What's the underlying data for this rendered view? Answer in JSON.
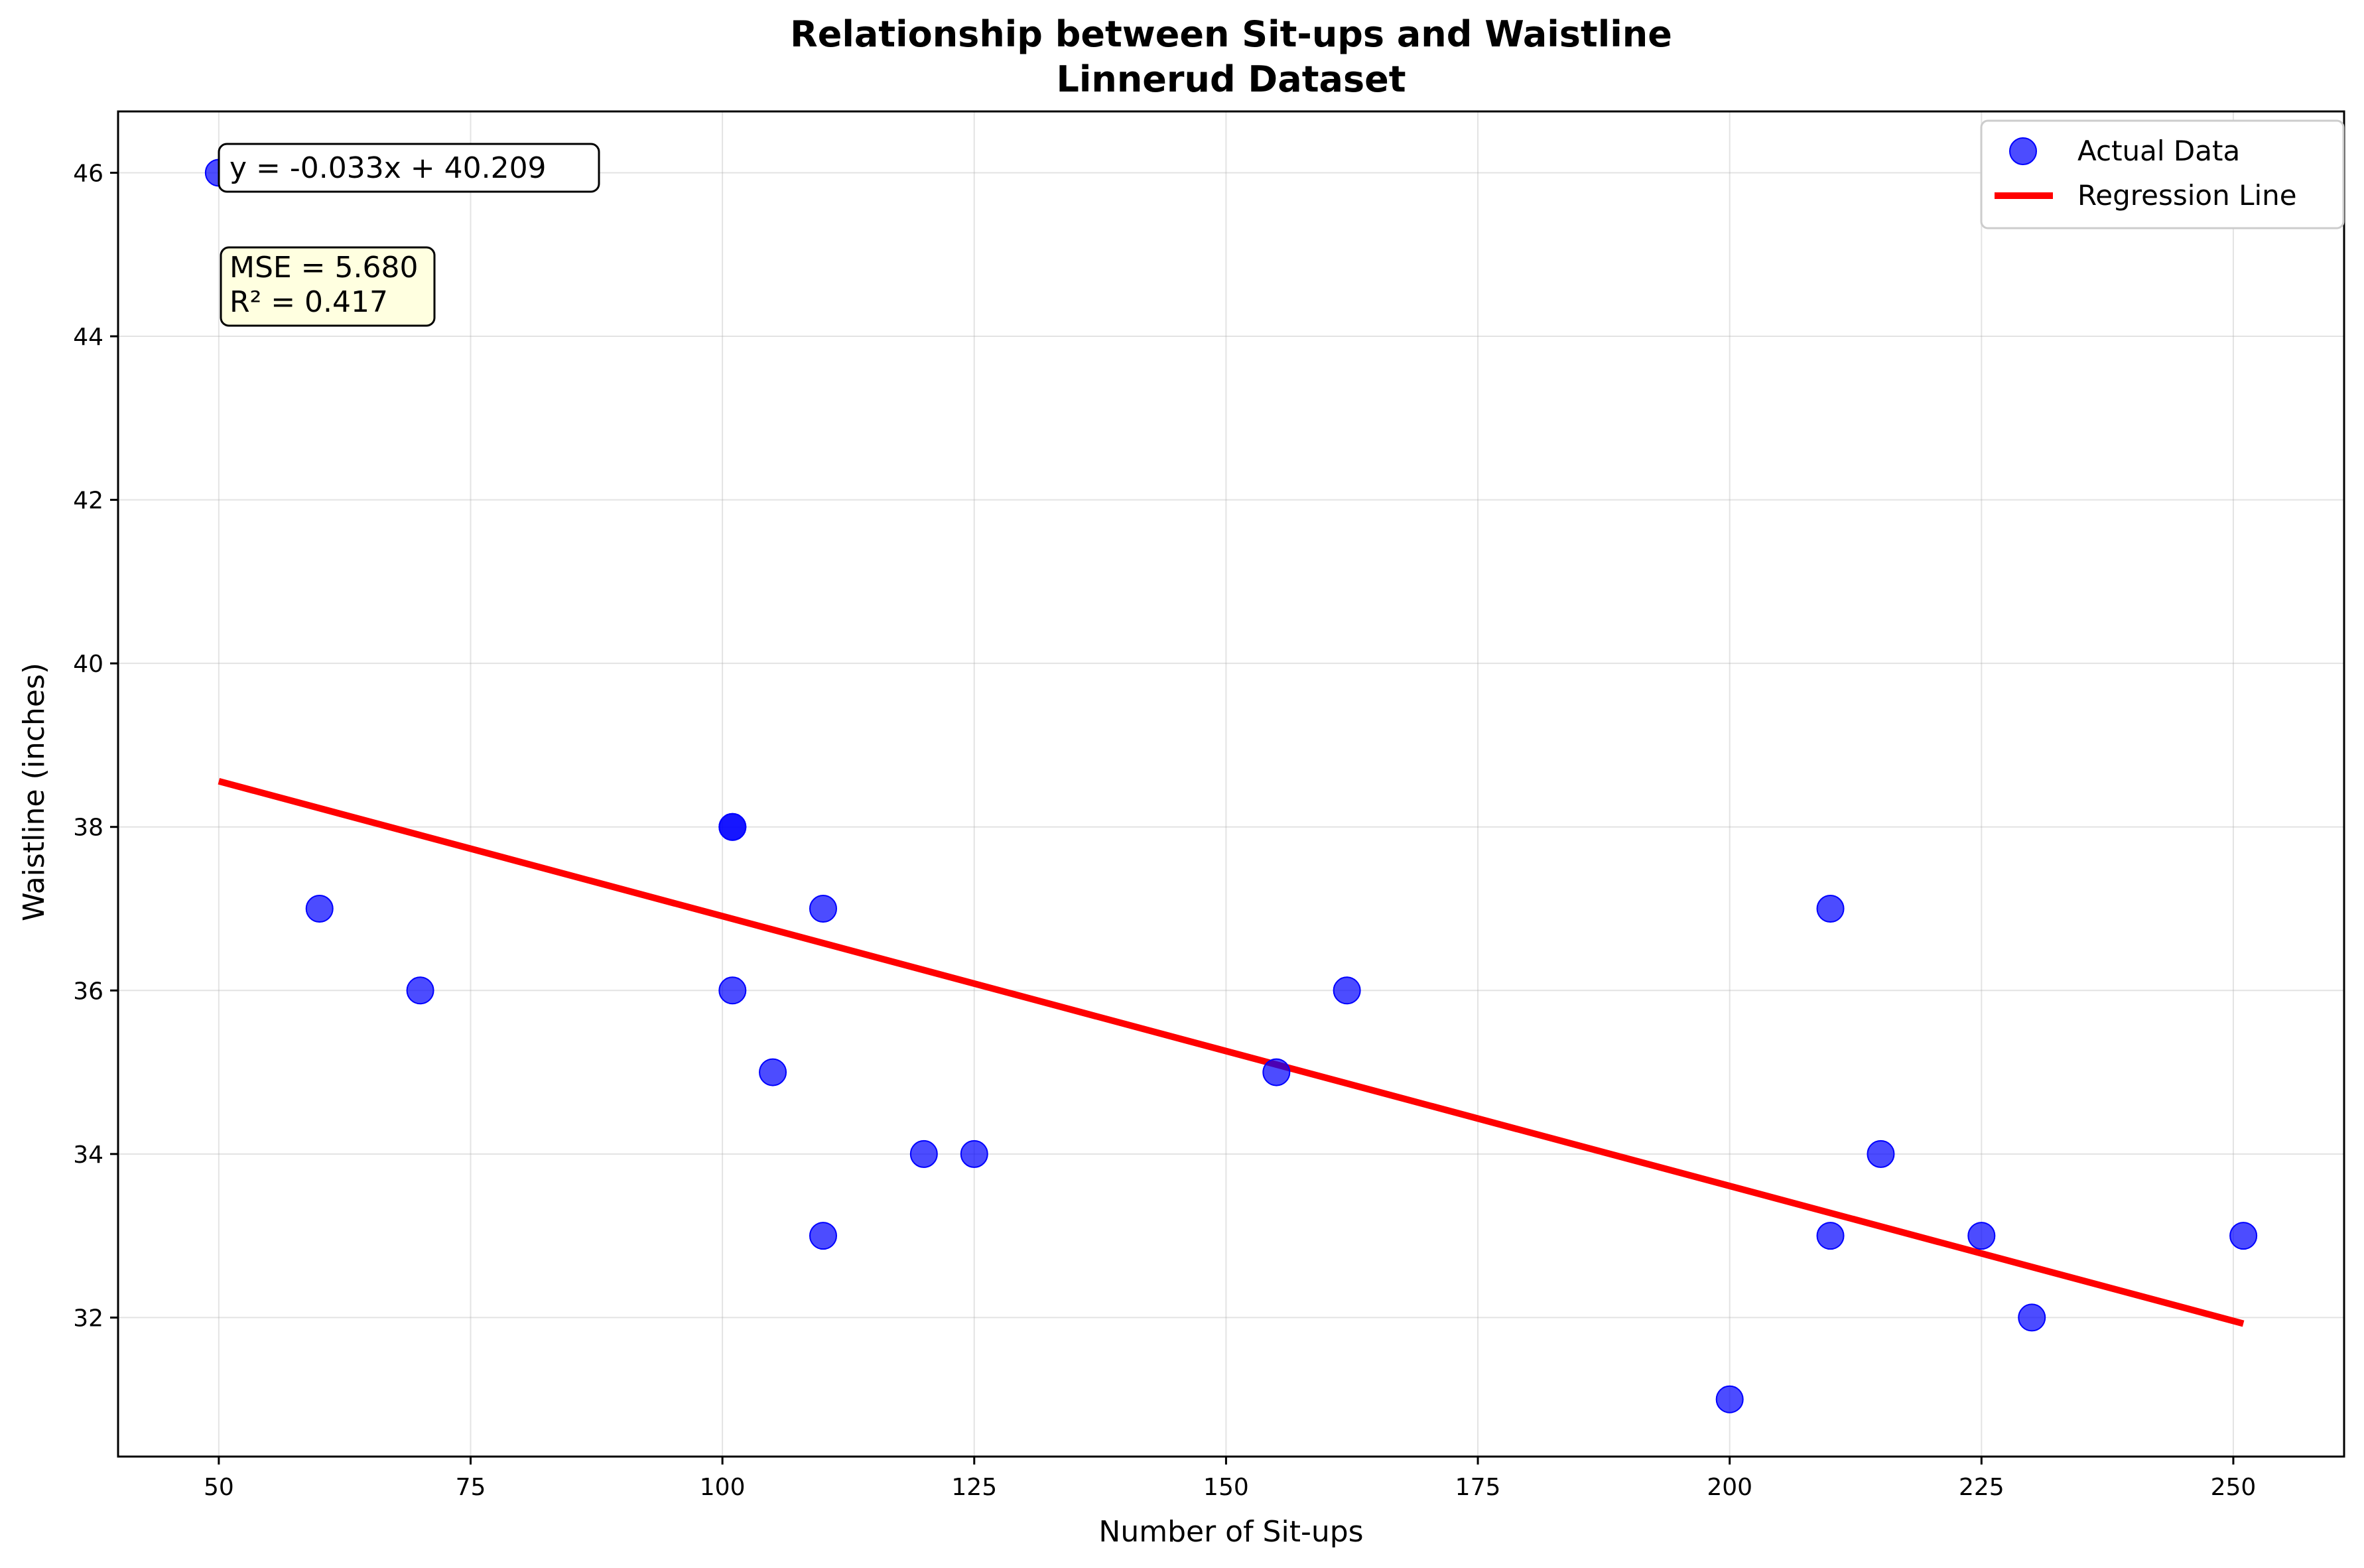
{
  "chart_data": {
    "type": "scatter",
    "title": "Relationship between Sit-ups and Waistline",
    "subtitle": "Linnerud Dataset",
    "xlabel": "Number of Sit-ups",
    "ylabel": "Waistline (inches)",
    "xlim": [
      40,
      261
    ],
    "ylim": [
      30.3,
      46.75
    ],
    "xticks": [
      50,
      75,
      100,
      125,
      150,
      175,
      200,
      225,
      250
    ],
    "yticks": [
      32,
      34,
      36,
      38,
      40,
      42,
      44,
      46
    ],
    "grid": true,
    "legend_position": "top-right",
    "series": [
      {
        "name": "Actual Data",
        "kind": "scatter",
        "color": "#0000ff",
        "x": [
          50,
          60,
          70,
          101,
          101,
          101,
          105,
          110,
          110,
          120,
          125,
          155,
          162,
          200,
          210,
          210,
          215,
          225,
          230,
          251
        ],
        "y": [
          46,
          37,
          36,
          38,
          38,
          36,
          35,
          37,
          33,
          34,
          34,
          35,
          36,
          31,
          37,
          33,
          34,
          33,
          32,
          33
        ]
      },
      {
        "name": "Regression Line",
        "kind": "line",
        "color": "#ff0000",
        "slope": -0.033,
        "intercept": 40.209,
        "x_range": [
          50,
          251
        ]
      }
    ],
    "annotations": {
      "equation": "y = -0.033x + 40.209",
      "mse": "MSE = 5.680",
      "r2": "R² = 0.417"
    }
  }
}
